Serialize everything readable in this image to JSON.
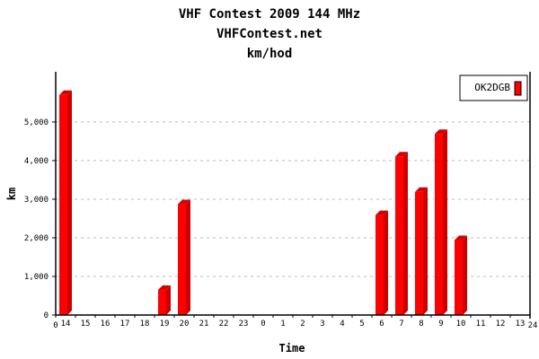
{
  "chart_data": {
    "type": "bar",
    "title": "VHF Contest 2009 144 MHz",
    "subtitle": "VHFContest.net",
    "subtitle2": "km/hod",
    "xlabel": "Time",
    "ylabel": "km",
    "categories": [
      "14",
      "15",
      "16",
      "17",
      "18",
      "19",
      "20",
      "21",
      "22",
      "23",
      "0",
      "1",
      "2",
      "3",
      "4",
      "5",
      "6",
      "7",
      "8",
      "9",
      "10",
      "11",
      "12",
      "13"
    ],
    "x_axis_start": "0",
    "x_axis_end": "24",
    "series": [
      {
        "name": "OK2DGB",
        "color": "#ff0000",
        "values": [
          5700,
          0,
          0,
          0,
          0,
          650,
          2870,
          0,
          0,
          0,
          0,
          0,
          0,
          0,
          0,
          0,
          2590,
          4110,
          3190,
          4690,
          1940,
          0,
          0,
          0
        ]
      }
    ],
    "yticks": [
      0,
      1000,
      2000,
      3000,
      4000,
      5000
    ],
    "ytick_labels": [
      "0",
      "1,000",
      "2,000",
      "3,000",
      "4,000",
      "5,000"
    ],
    "ylim": [
      0,
      6300
    ],
    "grid": true,
    "legend": "top-right"
  }
}
